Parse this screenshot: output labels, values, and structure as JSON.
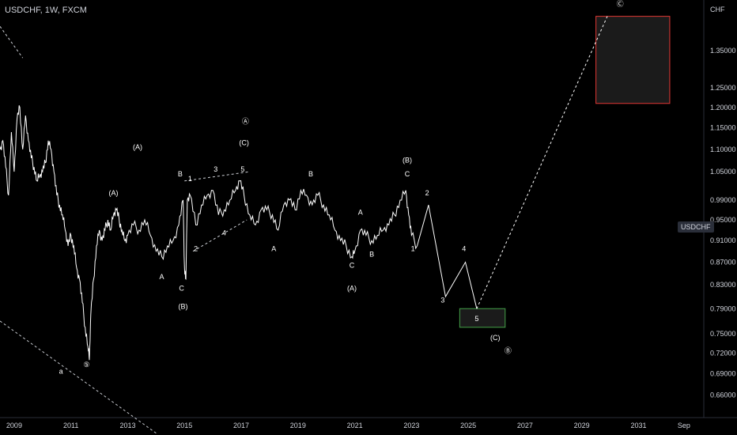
{
  "header": {
    "title": "USDCHF, 1W, FXCM"
  },
  "price_tag": "USDCHF",
  "chart_data": {
    "type": "line",
    "symbol": "USDCHF",
    "interval": "1W",
    "source": "FXCM",
    "y_unit": "CHF",
    "y_scale": "log",
    "ylim": [
      0.63,
      1.5
    ],
    "xlim": [
      2008.5,
      2033.3
    ],
    "y_ticks": [
      "1.35000",
      "1.25000",
      "1.20000",
      "1.15000",
      "1.10000",
      "1.05000",
      "0.99000",
      "0.95000",
      "0.91000",
      "0.87000",
      "0.83000",
      "0.79000",
      "0.75000",
      "0.72000",
      "0.69000",
      "0.66000"
    ],
    "x_ticks": [
      "2009",
      "2011",
      "2013",
      "2015",
      "2017",
      "2019",
      "2021",
      "2023",
      "2025",
      "2027",
      "2029",
      "2031",
      "Sep"
    ],
    "series": [
      {
        "values_x": [
          2008.5,
          2008.6,
          2008.7,
          2008.8,
          2008.9,
          2009.0,
          2009.1,
          2009.2,
          2009.3,
          2009.4,
          2009.5,
          2009.6,
          2009.7,
          2009.8,
          2009.9,
          2010.0,
          2010.1,
          2010.2,
          2010.3,
          2010.4,
          2010.5,
          2010.6,
          2010.7,
          2010.8,
          2010.9,
          2011.0,
          2011.1,
          2011.2,
          2011.3,
          2011.4,
          2011.5,
          2011.6,
          2011.65,
          2011.7,
          2011.8,
          2011.9,
          2012.0,
          2012.1,
          2012.2,
          2012.3,
          2012.4,
          2012.5,
          2012.6,
          2012.7,
          2012.8,
          2012.9,
          2013.0,
          2013.2,
          2013.4,
          2013.6,
          2013.8,
          2014.0,
          2014.2,
          2014.4,
          2014.6,
          2014.8,
          2014.95,
          2015.0,
          2015.05,
          2015.1,
          2015.2,
          2015.4,
          2015.6,
          2015.8,
          2016.0,
          2016.2,
          2016.4,
          2016.6,
          2016.8,
          2016.95,
          2017.1,
          2017.3,
          2017.5,
          2017.7,
          2017.9,
          2018.1,
          2018.3,
          2018.5,
          2018.7,
          2018.9,
          2019.1,
          2019.3,
          2019.5,
          2019.7,
          2019.9,
          2020.1,
          2020.3,
          2020.5,
          2020.7,
          2020.9,
          2021.0,
          2021.2,
          2021.4,
          2021.6,
          2021.8,
          2022.0,
          2022.2,
          2022.4,
          2022.6,
          2022.8,
          2022.9,
          2023.0,
          2023.2
        ],
        "values_y": [
          1.1,
          1.12,
          1.06,
          1.0,
          1.14,
          1.05,
          1.17,
          1.2,
          1.1,
          1.18,
          1.12,
          1.08,
          1.06,
          1.03,
          1.04,
          1.05,
          1.07,
          1.12,
          1.1,
          1.05,
          1.0,
          0.98,
          0.96,
          0.93,
          0.9,
          0.92,
          0.9,
          0.86,
          0.84,
          0.8,
          0.76,
          0.73,
          0.71,
          0.78,
          0.84,
          0.9,
          0.93,
          0.91,
          0.93,
          0.95,
          0.93,
          0.96,
          0.97,
          0.95,
          0.93,
          0.91,
          0.92,
          0.94,
          0.93,
          0.95,
          0.92,
          0.89,
          0.88,
          0.9,
          0.91,
          0.94,
          0.99,
          0.86,
          0.84,
          0.99,
          1.0,
          0.94,
          0.98,
          1.0,
          1.01,
          0.96,
          0.97,
          0.99,
          1.01,
          1.03,
          1.0,
          0.96,
          0.94,
          0.97,
          0.97,
          0.96,
          0.93,
          0.98,
          0.99,
          0.97,
          1.01,
          1.0,
          0.98,
          1.0,
          0.98,
          0.96,
          0.93,
          0.91,
          0.9,
          0.88,
          0.89,
          0.93,
          0.92,
          0.91,
          0.92,
          0.93,
          0.94,
          0.96,
          0.99,
          1.01,
          0.96,
          0.92,
          0.9
        ]
      }
    ],
    "projection_path": {
      "x": [
        2023.2,
        2023.6,
        2024.2,
        2024.9,
        2025.3,
        2029.9
      ],
      "y": [
        0.9,
        0.98,
        0.81,
        0.87,
        0.79,
        1.45
      ]
    },
    "boxes": [
      {
        "x0": 2029.5,
        "x1": 2032.1,
        "y0": 1.21,
        "y1": 1.45,
        "color": "#e53935"
      },
      {
        "x0": 2024.7,
        "x1": 2026.3,
        "y0": 0.76,
        "y1": 0.79,
        "color": "#43a047"
      }
    ],
    "wave_labels": [
      {
        "text": "(A)",
        "x": 2013.35,
        "y": 1.1
      },
      {
        "text": "Ⓐ",
        "x": 2017.15,
        "y": 1.16
      },
      {
        "text": "(C)",
        "x": 2017.1,
        "y": 1.11
      },
      {
        "text": "(A)",
        "x": 2012.5,
        "y": 1.0
      },
      {
        "text": "A",
        "x": 2014.2,
        "y": 0.84
      },
      {
        "text": "B",
        "x": 2014.85,
        "y": 1.04
      },
      {
        "text": "1",
        "x": 2015.2,
        "y": 1.03
      },
      {
        "text": "3",
        "x": 2016.1,
        "y": 1.05
      },
      {
        "text": "5",
        "x": 2017.05,
        "y": 1.05
      },
      {
        "text": "2",
        "x": 2015.4,
        "y": 0.89
      },
      {
        "text": "4",
        "x": 2016.4,
        "y": 0.92
      },
      {
        "text": "C",
        "x": 2014.9,
        "y": 0.82
      },
      {
        "text": "(B)",
        "x": 2014.95,
        "y": 0.79
      },
      {
        "text": "A",
        "x": 2018.15,
        "y": 0.89
      },
      {
        "text": "B",
        "x": 2019.45,
        "y": 1.04
      },
      {
        "text": "A",
        "x": 2021.2,
        "y": 0.96
      },
      {
        "text": "C",
        "x": 2020.9,
        "y": 0.86
      },
      {
        "text": "B",
        "x": 2021.6,
        "y": 0.88
      },
      {
        "text": "(A)",
        "x": 2020.9,
        "y": 0.82
      },
      {
        "text": "(B)",
        "x": 2022.85,
        "y": 1.07
      },
      {
        "text": "C",
        "x": 2022.85,
        "y": 1.04
      },
      {
        "text": "2",
        "x": 2023.55,
        "y": 1.0
      },
      {
        "text": "1",
        "x": 2023.05,
        "y": 0.89
      },
      {
        "text": "4",
        "x": 2024.85,
        "y": 0.89
      },
      {
        "text": "3",
        "x": 2024.1,
        "y": 0.8
      },
      {
        "text": "5",
        "x": 2025.3,
        "y": 0.77
      },
      {
        "text": "(C)",
        "x": 2025.95,
        "y": 0.74
      },
      {
        "text": "Ⓑ",
        "x": 2026.4,
        "y": 0.72
      },
      {
        "text": "Ⓒ",
        "x": 2030.35,
        "y": 1.48
      },
      {
        "text": "⑤",
        "x": 2011.55,
        "y": 0.7
      },
      {
        "text": "a",
        "x": 2010.65,
        "y": 0.69
      }
    ],
    "trendlines": [
      {
        "x": [
          2008.5,
          2009.3
        ],
        "y": [
          1.42,
          1.33
        ],
        "style": "dashed"
      },
      {
        "x": [
          2008.5,
          2014.0
        ],
        "y": [
          0.77,
          0.61
        ],
        "style": "dashed"
      },
      {
        "x": [
          2015.0,
          2017.3
        ],
        "y": [
          1.03,
          1.05
        ],
        "style": "dashed"
      },
      {
        "x": [
          2015.3,
          2017.2
        ],
        "y": [
          0.89,
          0.95
        ],
        "style": "dashed"
      }
    ]
  },
  "colors": {
    "background": "#000000",
    "line": "#ffffff",
    "axis_text": "#d1d4dc"
  }
}
